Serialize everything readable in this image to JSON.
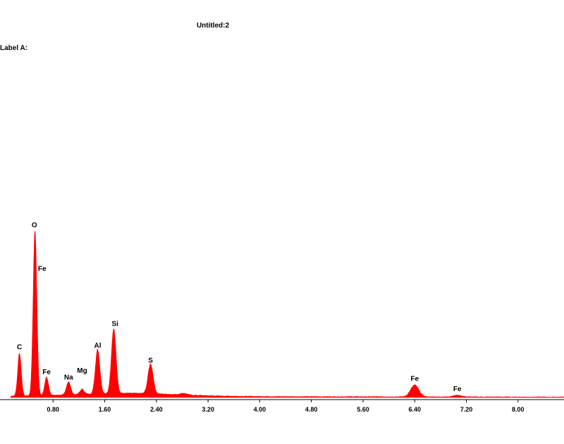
{
  "header": {
    "title": "Untitled:2",
    "label_a": "Label A:"
  },
  "colors": {
    "spectrum": "#ff0000",
    "axis": "#000000"
  },
  "chart_data": {
    "type": "area",
    "title": "Untitled:2",
    "xlabel": "",
    "ylabel": "",
    "xlim": [
      0,
      8.7
    ],
    "ylim": [
      0,
      100
    ],
    "grid": false,
    "x_ticks": [
      "0.80",
      "1.60",
      "2.40",
      "3.20",
      "4.00",
      "4.80",
      "5.60",
      "6.40",
      "7.20",
      "8.00"
    ],
    "x_tick_values": [
      0.8,
      1.6,
      2.4,
      3.2,
      4.0,
      4.8,
      5.6,
      6.4,
      7.2,
      8.0
    ],
    "peaks": [
      {
        "element": "C",
        "energy": 0.28,
        "height": 26
      },
      {
        "element": "O",
        "energy": 0.52,
        "height": 100
      },
      {
        "element": "Fe",
        "energy": 0.7,
        "height": 11
      },
      {
        "element": "Na",
        "energy": 1.04,
        "height": 8
      },
      {
        "element": "Mg",
        "energy": 1.25,
        "height": 3
      },
      {
        "element": "Al",
        "energy": 1.49,
        "height": 27
      },
      {
        "element": "Si",
        "energy": 1.74,
        "height": 39
      },
      {
        "element": "S",
        "energy": 2.31,
        "height": 18
      },
      {
        "element": "Fe",
        "energy": 6.4,
        "height": 7
      },
      {
        "element": "Fe",
        "energy": 7.06,
        "height": 1
      }
    ],
    "labels": [
      {
        "text": "C",
        "x": 0.28,
        "y": 28
      },
      {
        "text": "O",
        "x": 0.51,
        "y": 101
      },
      {
        "text": "Fe",
        "x": 0.63,
        "y": 75
      },
      {
        "text": "Fe",
        "x": 0.7,
        "y": 13
      },
      {
        "text": "Na",
        "x": 1.04,
        "y": 10
      },
      {
        "text": "Mg",
        "x": 1.25,
        "y": 14
      },
      {
        "text": "Al",
        "x": 1.49,
        "y": 29
      },
      {
        "text": "Si",
        "x": 1.76,
        "y": 42
      },
      {
        "text": "S",
        "x": 2.31,
        "y": 20
      },
      {
        "text": "Fe",
        "x": 6.4,
        "y": 9
      },
      {
        "text": "Fe",
        "x": 7.06,
        "y": 3
      }
    ]
  }
}
